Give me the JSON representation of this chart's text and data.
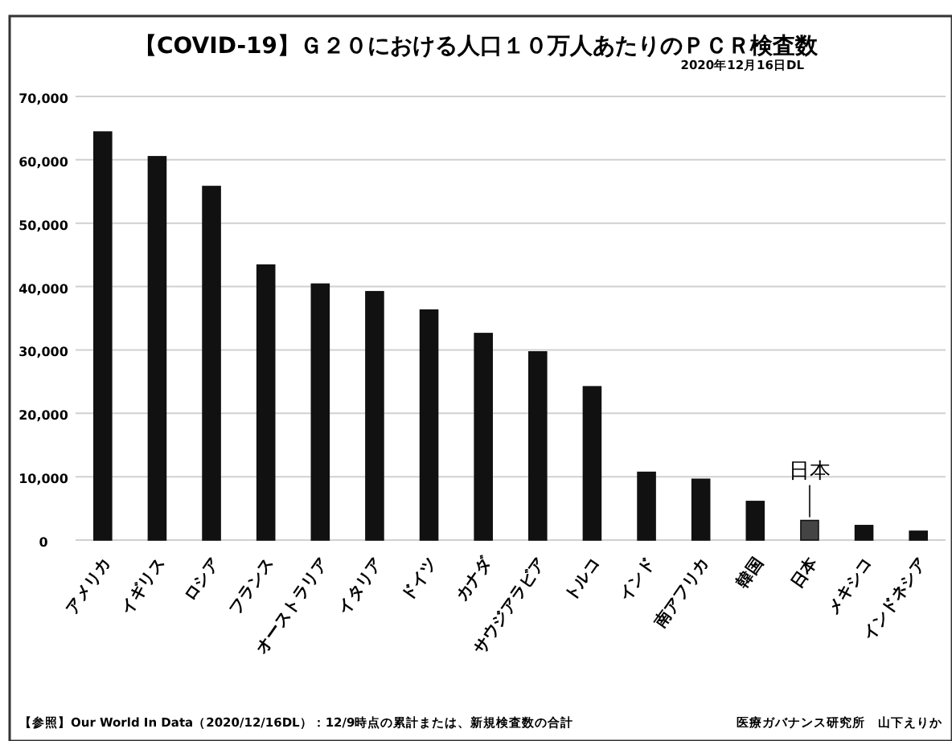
{
  "chart_data": {
    "type": "bar",
    "title": "【COVID-19】Ｇ２０における人口１０万人あたりのＰＣＲ検査数",
    "categories": [
      "アメリカ",
      "イギリス",
      "ロシア",
      "フランス",
      "オーストラリア",
      "イタリア",
      "ドイツ",
      "カナダ",
      "サウジアラビア",
      "トルコ",
      "インド",
      "南アフリカ",
      "韓国",
      "日本",
      "メキシコ",
      "インドネシア"
    ],
    "values": [
      64400,
      60500,
      55800,
      43400,
      40400,
      39200,
      36300,
      32600,
      29700,
      24200,
      10700,
      9600,
      6100,
      3100,
      2300,
      1400
    ],
    "colors": [
      "#111111",
      "#111111",
      "#111111",
      "#111111",
      "#111111",
      "#111111",
      "#111111",
      "#111111",
      "#111111",
      "#111111",
      "#111111",
      "#111111",
      "#111111",
      "#444444",
      "#111111",
      "#111111"
    ],
    "ylim": [
      0,
      70000
    ],
    "yticks": [
      {
        "value": 0,
        "label": "0"
      },
      {
        "value": 10000,
        "label": "10,000"
      },
      {
        "value": 20000,
        "label": "20,000"
      },
      {
        "value": 30000,
        "label": "30,000"
      },
      {
        "value": 40000,
        "label": "40,000"
      },
      {
        "value": 50000,
        "label": "50,000"
      },
      {
        "value": 60000,
        "label": "60,000"
      },
      {
        "value": 70000,
        "label": "70,000"
      }
    ],
    "grid": "y",
    "annotations": [
      "2020年12月16日DL",
      {
        "text": "日本",
        "x": "日本",
        "y": 3100
      },
      "【参照】Our World In Data（2020/12/16DL）：12/9時点の累計または、新規検査数の合計",
      "医療ガバナンス研究所　山下えりか"
    ]
  }
}
